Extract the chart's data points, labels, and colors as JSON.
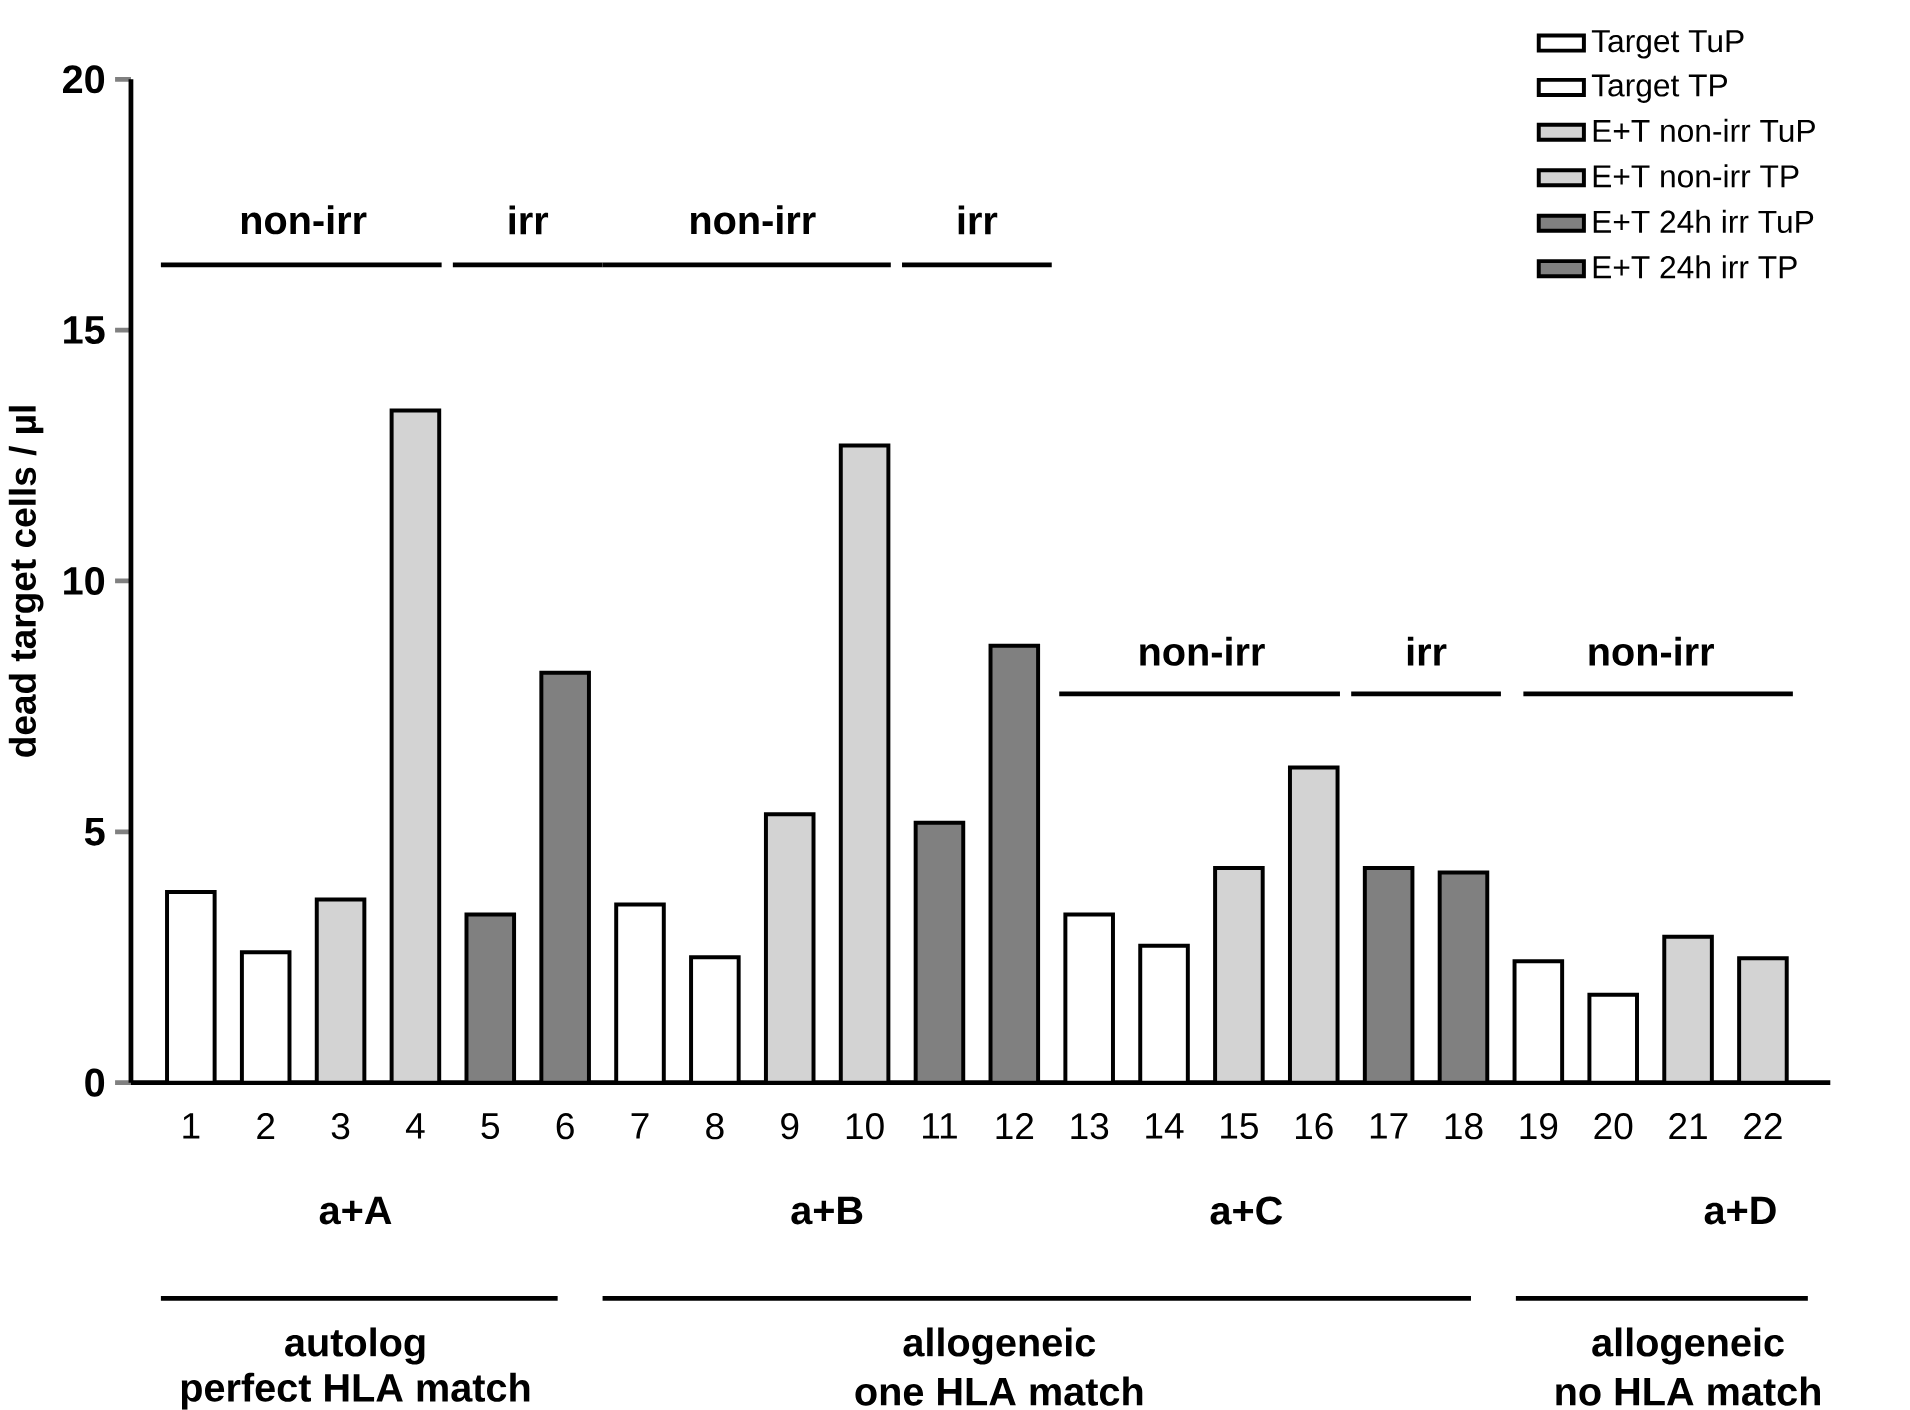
{
  "chart_data": {
    "type": "bar",
    "ylabel": "dead target cells / µl",
    "categories": [
      "1",
      "2",
      "3",
      "4",
      "5",
      "6",
      "7",
      "8",
      "9",
      "10",
      "11",
      "12",
      "13",
      "14",
      "15",
      "16",
      "17",
      "18",
      "19",
      "20",
      "21",
      "22"
    ],
    "series": [
      {
        "name": "Target TuP",
        "color": "#ffffff",
        "values": [
          3.8,
          null,
          null,
          null,
          null,
          null,
          3.55,
          null,
          null,
          null,
          null,
          null,
          3.35,
          null,
          null,
          null,
          null,
          null,
          2.42,
          null,
          null,
          null
        ]
      },
      {
        "name": "Target TP",
        "color": "#ffffff",
        "values": [
          null,
          2.6,
          null,
          null,
          null,
          null,
          null,
          2.5,
          null,
          null,
          null,
          null,
          null,
          2.73,
          null,
          null,
          null,
          null,
          null,
          1.75,
          null,
          null
        ]
      },
      {
        "name": "E+T non-irr TuP",
        "color": "#d3d3d3",
        "values": [
          null,
          null,
          3.65,
          null,
          null,
          null,
          null,
          null,
          5.35,
          null,
          null,
          null,
          null,
          null,
          4.28,
          null,
          null,
          null,
          null,
          null,
          2.91,
          null
        ]
      },
      {
        "name": "E+T non-irr TP",
        "color": "#d3d3d3",
        "values": [
          null,
          null,
          null,
          13.4,
          null,
          null,
          null,
          null,
          null,
          12.7,
          null,
          null,
          null,
          null,
          null,
          6.28,
          null,
          null,
          null,
          null,
          null,
          2.48
        ]
      },
      {
        "name": "E+T 24h irr TuP",
        "color": "#808080",
        "values": [
          null,
          null,
          null,
          null,
          3.35,
          null,
          null,
          null,
          null,
          null,
          5.18,
          null,
          null,
          null,
          null,
          null,
          4.28,
          null,
          null,
          null,
          null,
          null
        ]
      },
      {
        "name": "E+T 24h irr TP",
        "color": "#808080",
        "values": [
          null,
          null,
          null,
          null,
          null,
          8.17,
          null,
          null,
          null,
          null,
          null,
          8.71,
          null,
          null,
          null,
          null,
          null,
          4.19,
          null,
          null,
          null,
          null
        ]
      }
    ],
    "ylim": [
      0,
      20
    ],
    "yticks": [
      0,
      5,
      10,
      15,
      20
    ],
    "legend": "top right",
    "annotations": [
      "non-irr",
      "irr",
      "non-irr",
      "irr",
      "non-irr",
      "irr",
      "non-irr",
      "a+A",
      "a+B",
      "a+C",
      "a+D",
      "autolog",
      "perfect HLA match",
      "allogeneic",
      "one HLA match",
      "allogeneic",
      "no HLA match"
    ]
  }
}
